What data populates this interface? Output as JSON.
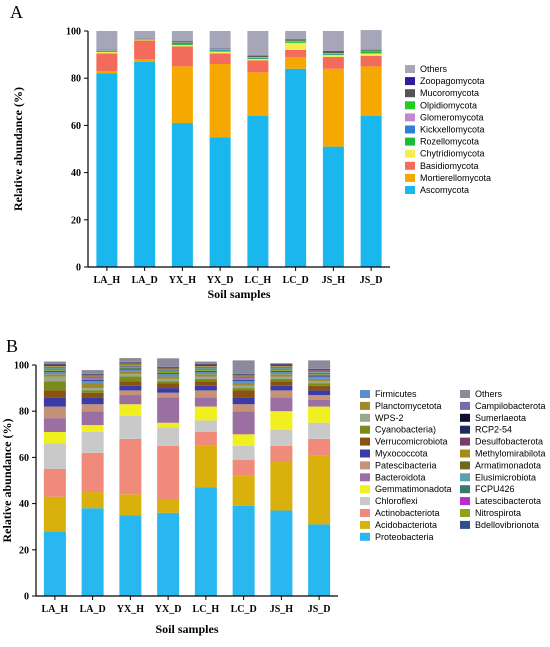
{
  "panels": [
    {
      "id": "A",
      "panel_label": "A",
      "legend_columns": 1,
      "chart_data": {
        "type": "bar",
        "stacked": true,
        "title": "",
        "xlabel": "Soil samples",
        "ylabel": "Relative abundance (%)",
        "ylim": [
          0,
          100
        ],
        "yticks": [
          0,
          20,
          40,
          60,
          80,
          100
        ],
        "legend_position": "right",
        "grid": false,
        "categories": [
          "LA_H",
          "LA_D",
          "YX_H",
          "YX_D",
          "LC_H",
          "LC_D",
          "JS_H",
          "JS_D"
        ],
        "series": [
          {
            "name": "Ascomycota",
            "color": "#1ab6ee",
            "values": [
              82,
              87,
              61,
              55,
              64,
              84,
              51,
              64
            ]
          },
          {
            "name": "Mortierellomycota",
            "color": "#f5a800",
            "values": [
              1,
              1,
              24,
              31,
              18.5,
              5,
              33,
              21
            ]
          },
          {
            "name": "Basidiomycota",
            "color": "#f26b5b",
            "values": [
              7.5,
              8,
              8.5,
              4.5,
              5,
              3,
              5,
              4.5
            ]
          },
          {
            "name": "Chytridiomycota",
            "color": "#f2ef4c",
            "values": [
              0.6,
              0.4,
              0.6,
              0.8,
              0.6,
              3,
              0.8,
              1
            ]
          },
          {
            "name": "Rozellomycota",
            "color": "#1dbb36",
            "values": [
              0.3,
              0.2,
              0.6,
              0.4,
              0.3,
              0.4,
              0.3,
              0.6
            ]
          },
          {
            "name": "Kickxellomycota",
            "color": "#2e7fd6",
            "values": [
              0.2,
              0.1,
              0.3,
              0.3,
              0.2,
              0.2,
              0.3,
              0.3
            ]
          },
          {
            "name": "Glomeromycota",
            "color": "#c08ad2",
            "values": [
              0.2,
              0.1,
              0.1,
              0.2,
              0.3,
              0.2,
              0.2,
              0.2
            ]
          },
          {
            "name": "Olpidiomycota",
            "color": "#22cc22",
            "values": [
              0.1,
              0.1,
              0.1,
              0.1,
              0.1,
              0.1,
              0.1,
              0.1
            ]
          },
          {
            "name": "Mucoromycota",
            "color": "#545454",
            "values": [
              0.1,
              0.1,
              0.4,
              0.2,
              0.5,
              0.5,
              0.8,
              0.3
            ]
          },
          {
            "name": "Zoopagomycota",
            "color": "#2c1d9e",
            "values": [
              0.1,
              0.1,
              0.1,
              0.1,
              0.1,
              0.1,
              0.1,
              0.1
            ]
          },
          {
            "name": "Others",
            "color": "#a6a6b8",
            "values": [
              7.9,
              2.9,
              4.3,
              7.4,
              10.4,
              3.5,
              8.4,
              8.3
            ]
          }
        ],
        "legend_order": [
          "Others",
          "Zoopagomycota",
          "Mucoromycota",
          "Olpidiomycota",
          "Glomeromycota",
          "Kickxellomycota",
          "Rozellomycota",
          "Chytridiomycota",
          "Basidiomycota",
          "Mortierellomycota",
          "Ascomycota"
        ]
      }
    },
    {
      "id": "B",
      "panel_label": "B",
      "legend_columns": 2,
      "chart_data": {
        "type": "bar",
        "stacked": true,
        "title": "",
        "xlabel": "Soil samples",
        "ylabel": "Relative abundance (%)",
        "ylim": [
          0,
          100
        ],
        "yticks": [
          0,
          20,
          40,
          60,
          80,
          100
        ],
        "legend_position": "right",
        "grid": false,
        "categories": [
          "LA_H",
          "LA_D",
          "YX_H",
          "YX_D",
          "LC_H",
          "LC_D",
          "JS_H",
          "JS_D"
        ],
        "series": [
          {
            "name": "Proteobacteria",
            "color": "#28b7ef",
            "values": [
              28,
              38,
              35,
              36,
              47,
              39,
              37,
              31
            ]
          },
          {
            "name": "Acidobacteriota",
            "color": "#d9b00c",
            "values": [
              15,
              7,
              9,
              6,
              18,
              13,
              21,
              30
            ]
          },
          {
            "name": "Actinobacteriota",
            "color": "#f08a7a",
            "values": [
              12,
              17,
              24,
              23,
              6,
              7,
              7,
              7
            ]
          },
          {
            "name": "Chloroflexi",
            "color": "#c9c9c9",
            "values": [
              11,
              9,
              10,
              8,
              5,
              6,
              7,
              7
            ]
          },
          {
            "name": "Gemmatimonadota",
            "color": "#f0f020",
            "values": [
              5,
              3,
              5,
              2,
              6,
              5,
              8,
              7
            ]
          },
          {
            "name": "Bacteroidota",
            "color": "#9c6fa3",
            "values": [
              6,
              6,
              4,
              11,
              4,
              10,
              6,
              3
            ]
          },
          {
            "name": "Patescibacteria",
            "color": "#c59278",
            "values": [
              5,
              3,
              2,
              2,
              3,
              3,
              3,
              2
            ]
          },
          {
            "name": "Myxococcota",
            "color": "#3b3ba8",
            "values": [
              4,
              3,
              2,
              2,
              2,
              3,
              2,
              2
            ]
          },
          {
            "name": "Verrucomicrobiota",
            "color": "#8a5210",
            "values": [
              3,
              2,
              2,
              2,
              2,
              3,
              2,
              2
            ]
          },
          {
            "name": "Cyanobacteria",
            "color": "#7a8b1a",
            "values": [
              4,
              1,
              2,
              1,
              1,
              1,
              1,
              1
            ]
          },
          {
            "name": "WPS-2",
            "color": "#98a890",
            "values": [
              2,
              1,
              1,
              1,
              1,
              1,
              1,
              1
            ]
          },
          {
            "name": "Planctomycetota",
            "color": "#a08a2c",
            "values": [
              1,
              2,
              1,
              1,
              1,
              1,
              1,
              1
            ]
          },
          {
            "name": "Firmicutes",
            "color": "#5c8fc9",
            "values": [
              1,
              1,
              1,
              1,
              1,
              1,
              1,
              1
            ]
          },
          {
            "name": "Bdellovibrionota",
            "color": "#2e4f8a",
            "values": [
              0.5,
              0.5,
              0.5,
              0.5,
              0.5,
              0.5,
              0.5,
              0.5
            ]
          },
          {
            "name": "Nitrospirota",
            "color": "#8fa31a",
            "values": [
              0.5,
              0.5,
              0.5,
              0.5,
              0.5,
              0.5,
              0.5,
              0.5
            ]
          },
          {
            "name": "Latescibacterota",
            "color": "#b42fd0",
            "values": [
              0.3,
              0.3,
              0.3,
              0.3,
              0.3,
              0.3,
              0.3,
              0.3
            ]
          },
          {
            "name": "FCPU426",
            "color": "#3a7a6a",
            "values": [
              0.3,
              0.3,
              0.3,
              0.3,
              0.3,
              0.3,
              0.3,
              0.3
            ]
          },
          {
            "name": "Elusimicrobiota",
            "color": "#5aa0b0",
            "values": [
              0.3,
              0.3,
              0.3,
              0.3,
              0.3,
              0.3,
              0.3,
              0.3
            ]
          },
          {
            "name": "Armatimonadota",
            "color": "#6e6a1a",
            "values": [
              0.3,
              0.3,
              0.3,
              0.3,
              0.3,
              0.3,
              0.3,
              0.3
            ]
          },
          {
            "name": "Methylomirabilota",
            "color": "#a88a18",
            "values": [
              0.3,
              0.3,
              0.3,
              0.3,
              0.3,
              0.3,
              0.3,
              0.3
            ]
          },
          {
            "name": "Desulfobacterota",
            "color": "#7a3a6a",
            "values": [
              0.3,
              0.3,
              0.3,
              0.3,
              0.3,
              0.3,
              0.3,
              0.3
            ]
          },
          {
            "name": "RCP2-54",
            "color": "#1f2a60",
            "values": [
              0.2,
              0.2,
              0.2,
              0.2,
              0.2,
              0.2,
              0.2,
              0.2
            ]
          },
          {
            "name": "Sumerlaeota",
            "color": "#101030",
            "values": [
              0.2,
              0.2,
              0.2,
              0.2,
              0.2,
              0.2,
              0.2,
              0.2
            ]
          },
          {
            "name": "Campilobacterota",
            "color": "#7a6aaa",
            "values": [
              0.2,
              0.2,
              0.2,
              0.2,
              0.2,
              0.2,
              0.2,
              0.2
            ]
          },
          {
            "name": "Others",
            "color": "#8a8a9a",
            "values": [
              1.1,
              1.4,
              1.6,
              3.5,
              1.1,
              5.6,
              0.4,
              3.6
            ]
          }
        ],
        "legend_order": [
          "Firmicutes",
          "Planctomycetota",
          "WPS-2",
          "Cyanobacteria",
          "Verrucomicrobiota",
          "Myxococcota",
          "Patescibacteria",
          "Bacteroidota",
          "Gemmatimonadota",
          "Chloroflexi",
          "Actinobacteriota",
          "Acidobacteriota",
          "Proteobacteria",
          "Others",
          "Campilobacterota",
          "Sumerlaeota",
          "RCP2-54",
          "Desulfobacterota",
          "Methylomirabilota",
          "Armatimonadota",
          "Elusimicrobiota",
          "FCPU426",
          "Latescibacterota",
          "Nitrospirota",
          "Bdellovibrionota"
        ],
        "legend_labels": {
          "Cyanobacteria": "Cyanobacteria)"
        }
      }
    }
  ]
}
